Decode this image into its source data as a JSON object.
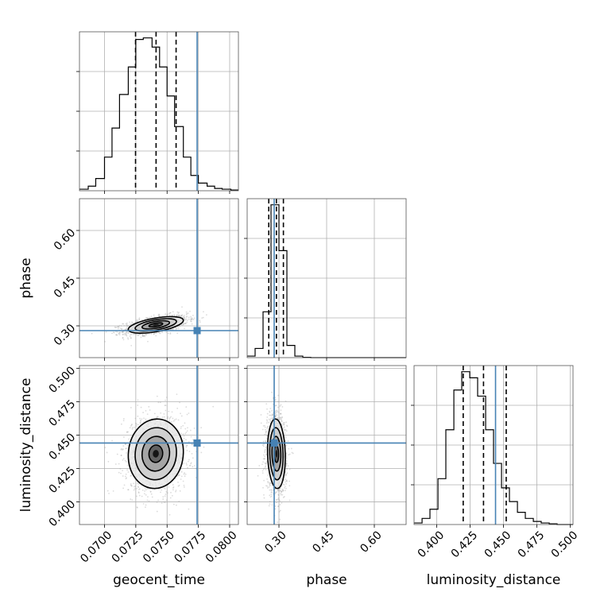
{
  "chart_data": {
    "type": "corner",
    "parameters": [
      "geocent_time",
      "phase",
      "luminosity_distance"
    ],
    "truth": {
      "geocent_time": 0.0774,
      "phase": 0.285,
      "luminosity_distance": 0.444
    },
    "colors": {
      "truth": "#4682b4",
      "hist": "#000000",
      "grid": "#b0b0b0",
      "points": "#9a9a9a"
    },
    "grid": true,
    "diagonals": [
      {
        "param": "geocent_time",
        "range": [
          0.068,
          0.0807
        ],
        "xticks": [
          0.07,
          0.0725,
          0.075,
          0.0775,
          0.08
        ],
        "xtick_labels": [
          "0.0700",
          "0.0725",
          "0.0750",
          "0.0775",
          "0.0800"
        ],
        "hist_edges": [
          0.068,
          0.0687,
          0.0693,
          0.07,
          0.0706,
          0.0712,
          0.0719,
          0.0725,
          0.0731,
          0.0738,
          0.0744,
          0.075,
          0.0756,
          0.0763,
          0.0769,
          0.0775,
          0.0782,
          0.0788,
          0.0794,
          0.0801,
          0.0807
        ],
        "hist_counts": [
          0.01,
          0.03,
          0.08,
          0.22,
          0.41,
          0.63,
          0.81,
          0.99,
          1.0,
          0.94,
          0.81,
          0.62,
          0.42,
          0.22,
          0.1,
          0.05,
          0.03,
          0.015,
          0.01,
          0.005
        ],
        "quantiles": [
          0.07248,
          0.07412,
          0.07572
        ]
      },
      {
        "param": "phase",
        "range": [
          0.2,
          0.7
        ],
        "xticks": [
          0.3,
          0.45,
          0.6
        ],
        "xtick_labels": [
          "0.30",
          "0.45",
          "0.60"
        ],
        "hist_edges": [
          0.2,
          0.225,
          0.25,
          0.275,
          0.3,
          0.325,
          0.35,
          0.375,
          0.4,
          0.425,
          0.45,
          0.475,
          0.5,
          0.525,
          0.55,
          0.575,
          0.6,
          0.625,
          0.65,
          0.675,
          0.7
        ],
        "hist_counts": [
          0.01,
          0.06,
          0.3,
          1.0,
          0.7,
          0.08,
          0.01,
          0.002,
          0,
          0,
          0,
          0,
          0,
          0,
          0,
          0,
          0,
          0,
          0,
          0
        ],
        "quantiles": [
          0.268,
          0.292,
          0.314
        ]
      },
      {
        "param": "luminosity_distance",
        "range": [
          0.383,
          0.502
        ],
        "xticks": [
          0.4,
          0.425,
          0.45,
          0.475,
          0.5
        ],
        "xtick_labels": [
          "0.400",
          "0.425",
          "0.450",
          "0.475",
          "0.500"
        ],
        "hist_edges": [
          0.383,
          0.389,
          0.3949,
          0.4009,
          0.4068,
          0.4128,
          0.4187,
          0.4247,
          0.4306,
          0.4366,
          0.4425,
          0.4485,
          0.4544,
          0.4604,
          0.4663,
          0.4723,
          0.4782,
          0.4842,
          0.4901,
          0.4961,
          0.502
        ],
        "hist_counts": [
          0.01,
          0.04,
          0.1,
          0.3,
          0.62,
          0.88,
          1.0,
          0.96,
          0.84,
          0.62,
          0.4,
          0.24,
          0.15,
          0.08,
          0.04,
          0.02,
          0.01,
          0.005,
          0,
          0
        ],
        "quantiles": [
          0.4198,
          0.435,
          0.452
        ]
      }
    ],
    "pairs": [
      {
        "x": "geocent_time",
        "y": "phase",
        "xrange": [
          0.068,
          0.0807
        ],
        "yrange": [
          0.2,
          0.7
        ],
        "yticks": [
          0.3,
          0.45,
          0.6
        ],
        "ytick_labels": [
          "0.30",
          "0.45",
          "0.60"
        ],
        "ylabel": "phase",
        "mean": [
          0.0741,
          0.303
        ],
        "std": [
          0.0011,
          0.013
        ],
        "corr": 0.55,
        "n_points": 1400
      },
      {
        "x": "geocent_time",
        "y": "luminosity_distance",
        "xrange": [
          0.068,
          0.0807
        ],
        "yrange": [
          0.383,
          0.502
        ],
        "yticks": [
          0.4,
          0.425,
          0.45,
          0.475,
          0.5
        ],
        "ytick_labels": [
          "0.400",
          "0.425",
          "0.450",
          "0.475",
          "0.500"
        ],
        "ylabel": "luminosity_distance",
        "mean": [
          0.0741,
          0.436
        ],
        "std": [
          0.0011,
          0.013
        ],
        "corr": 0.05,
        "n_points": 1400
      },
      {
        "x": "phase",
        "y": "luminosity_distance",
        "xrange": [
          0.2,
          0.7
        ],
        "yrange": [
          0.383,
          0.502
        ],
        "ylabel": "",
        "mean": [
          0.292,
          0.436
        ],
        "std": [
          0.014,
          0.013
        ],
        "corr": -0.1,
        "n_points": 1400
      }
    ],
    "xlabels": [
      "geocent_time",
      "phase",
      "luminosity_distance"
    ],
    "contour_levels_sigma": [
      0.5,
      1.0,
      1.5,
      2.0
    ]
  }
}
